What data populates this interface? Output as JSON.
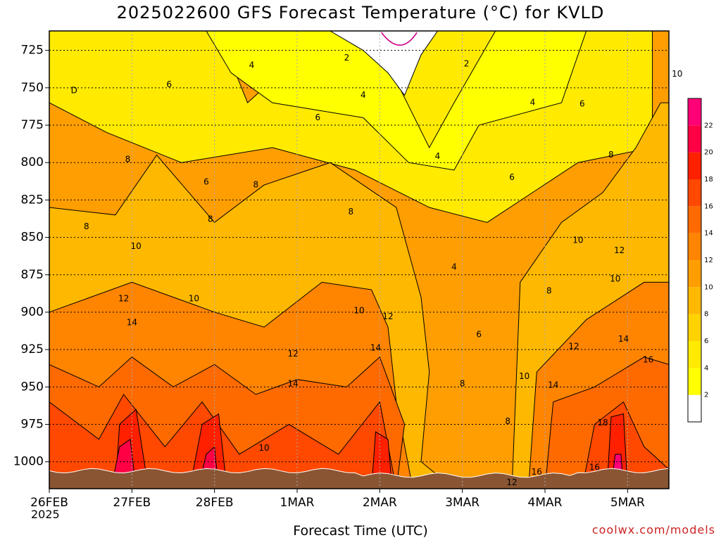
{
  "chart_data": {
    "type": "heatmap",
    "title": "2025022600 GFS Forecast Temperature (°C) for KVLD",
    "xlabel": "Forecast Time (UTC)",
    "ylabel": "",
    "credit": "coolwx.com/models",
    "year_label": "2025",
    "x_ticks": [
      "26FEB",
      "27FEB",
      "28FEB",
      "1MAR",
      "2MAR",
      "3MAR",
      "4MAR",
      "5MAR"
    ],
    "xlim_days": [
      0,
      7.5
    ],
    "y_ticks": [
      725,
      750,
      775,
      800,
      825,
      850,
      875,
      900,
      925,
      950,
      975,
      1000
    ],
    "ylim_hpa": [
      712,
      1018
    ],
    "grid": true,
    "colorbar": {
      "labels": [
        "2",
        "4",
        "6",
        "8",
        "10",
        "12",
        "14",
        "16",
        "18",
        "20",
        "22"
      ],
      "colors": [
        "#ffffff",
        "#ffff00",
        "#ffea00",
        "#ffd200",
        "#ffb800",
        "#ff9e00",
        "#ff8400",
        "#ff6a00",
        "#ff4800",
        "#ff2000",
        "#ff0044",
        "#ff0077"
      ]
    },
    "contour_labels": [
      {
        "day": 0.3,
        "hpa": 752,
        "text": "D"
      },
      {
        "day": 2.45,
        "hpa": 735,
        "text": "4"
      },
      {
        "day": 3.6,
        "hpa": 730,
        "text": "2"
      },
      {
        "day": 5.05,
        "hpa": 734,
        "text": "2"
      },
      {
        "day": 1.45,
        "hpa": 748,
        "text": "6"
      },
      {
        "day": 3.8,
        "hpa": 755,
        "text": "4"
      },
      {
        "day": 5.85,
        "hpa": 760,
        "text": "4"
      },
      {
        "day": 6.45,
        "hpa": 761,
        "text": "6"
      },
      {
        "day": 7.6,
        "hpa": 741,
        "text": "10"
      },
      {
        "day": 3.25,
        "hpa": 770,
        "text": "6"
      },
      {
        "day": 4.7,
        "hpa": 796,
        "text": "4"
      },
      {
        "day": 0.95,
        "hpa": 798,
        "text": "8"
      },
      {
        "day": 6.8,
        "hpa": 795,
        "text": "8"
      },
      {
        "day": 1.9,
        "hpa": 813,
        "text": "6"
      },
      {
        "day": 2.5,
        "hpa": 815,
        "text": "8"
      },
      {
        "day": 5.6,
        "hpa": 810,
        "text": "6"
      },
      {
        "day": 0.45,
        "hpa": 843,
        "text": "8"
      },
      {
        "day": 1.95,
        "hpa": 838,
        "text": "8"
      },
      {
        "day": 3.65,
        "hpa": 833,
        "text": "8"
      },
      {
        "day": 6.4,
        "hpa": 852,
        "text": "10"
      },
      {
        "day": 1.05,
        "hpa": 856,
        "text": "10"
      },
      {
        "day": 6.9,
        "hpa": 859,
        "text": "12"
      },
      {
        "day": 4.9,
        "hpa": 870,
        "text": "4"
      },
      {
        "day": 6.05,
        "hpa": 886,
        "text": "8"
      },
      {
        "day": 6.85,
        "hpa": 878,
        "text": "10"
      },
      {
        "day": 0.9,
        "hpa": 891,
        "text": "12"
      },
      {
        "day": 1.75,
        "hpa": 891,
        "text": "10"
      },
      {
        "day": 3.75,
        "hpa": 899,
        "text": "10"
      },
      {
        "day": 4.1,
        "hpa": 903,
        "text": "12"
      },
      {
        "day": 1.0,
        "hpa": 907,
        "text": "14"
      },
      {
        "day": 5.2,
        "hpa": 915,
        "text": "6"
      },
      {
        "day": 6.35,
        "hpa": 923,
        "text": "12"
      },
      {
        "day": 2.95,
        "hpa": 928,
        "text": "12"
      },
      {
        "day": 3.95,
        "hpa": 924,
        "text": "14"
      },
      {
        "day": 6.95,
        "hpa": 918,
        "text": "14"
      },
      {
        "day": 7.25,
        "hpa": 932,
        "text": "16"
      },
      {
        "day": 2.95,
        "hpa": 948,
        "text": "14"
      },
      {
        "day": 5.0,
        "hpa": 948,
        "text": "8"
      },
      {
        "day": 5.75,
        "hpa": 943,
        "text": "10"
      },
      {
        "day": 6.1,
        "hpa": 949,
        "text": "14"
      },
      {
        "day": 5.55,
        "hpa": 973,
        "text": "8"
      },
      {
        "day": 6.7,
        "hpa": 974,
        "text": "18"
      },
      {
        "day": 2.6,
        "hpa": 991,
        "text": "10"
      },
      {
        "day": 5.9,
        "hpa": 1007,
        "text": "16"
      },
      {
        "day": 6.6,
        "hpa": 1004,
        "text": "16"
      },
      {
        "day": 5.6,
        "hpa": 1014,
        "text": "12"
      }
    ]
  }
}
